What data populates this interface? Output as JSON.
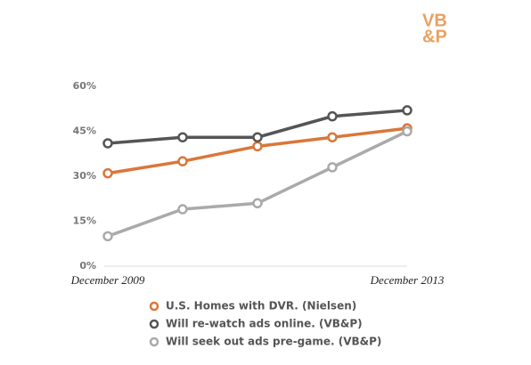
{
  "logo": {
    "line1": "VB",
    "line2": "&P"
  },
  "chart_data": {
    "type": "line",
    "categories": [
      "December 2009",
      null,
      null,
      null,
      "December 2013"
    ],
    "series": [
      {
        "name": "U.S. Homes with DVR. (Nielsen)",
        "color": "#d9773a",
        "values": [
          31,
          35,
          40,
          43,
          46
        ]
      },
      {
        "name": "Will re-watch ads online. (VB&P)",
        "color": "#555555",
        "values": [
          41,
          43,
          43,
          50,
          52
        ]
      },
      {
        "name": "Will seek out ads pre-game. (VB&P)",
        "color": "#aaaaaa",
        "values": [
          10,
          19,
          21,
          33,
          45
        ]
      }
    ],
    "ylim": [
      0,
      60
    ],
    "yticks": [
      {
        "value": 0,
        "label": "0%"
      },
      {
        "value": 15,
        "label": "15%"
      },
      {
        "value": 30,
        "label": "30%"
      },
      {
        "value": 45,
        "label": "45%"
      },
      {
        "value": 60,
        "label": "60%"
      }
    ],
    "grid": false
  }
}
